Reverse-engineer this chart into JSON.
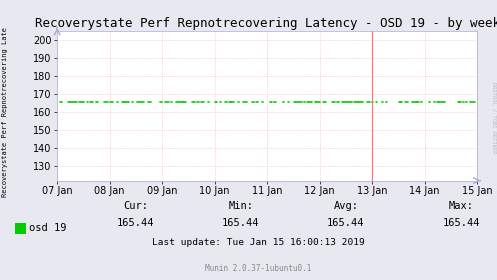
{
  "title": "Recoverystate Perf Repnotrecovering Latency - OSD 19 - by week",
  "ylabel": "Recoverystate Perf Repnotrecovering Late",
  "right_label": "RRDTOOL / TOBI OETIKER",
  "bg_color": "#e8e8f0",
  "plot_bg_color": "#ffffff",
  "grid_color": "#ddaaaa",
  "line_color": "#00cc00",
  "line_value": 165.44,
  "x_ticks_labels": [
    "07 Jan",
    "08 Jan",
    "09 Jan",
    "10 Jan",
    "11 Jan",
    "12 Jan",
    "13 Jan",
    "14 Jan",
    "15 Jan"
  ],
  "x_ticks_positions": [
    0,
    1,
    2,
    3,
    4,
    5,
    6,
    7,
    8
  ],
  "ylim_min": 122,
  "ylim_max": 205,
  "y_ticks": [
    130,
    140,
    150,
    160,
    170,
    180,
    190,
    200
  ],
  "legend_label": "osd 19",
  "cur": "165.44",
  "min_val": "165.44",
  "avg": "165.44",
  "max_val": "165.44",
  "last_update": "Last update: Tue Jan 15 16:00:13 2019",
  "munin_version": "Munin 2.0.37-1ubuntu0.1",
  "red_line_x": 6,
  "title_fontsize": 9,
  "axis_fontsize": 7,
  "legend_fontsize": 7.5
}
